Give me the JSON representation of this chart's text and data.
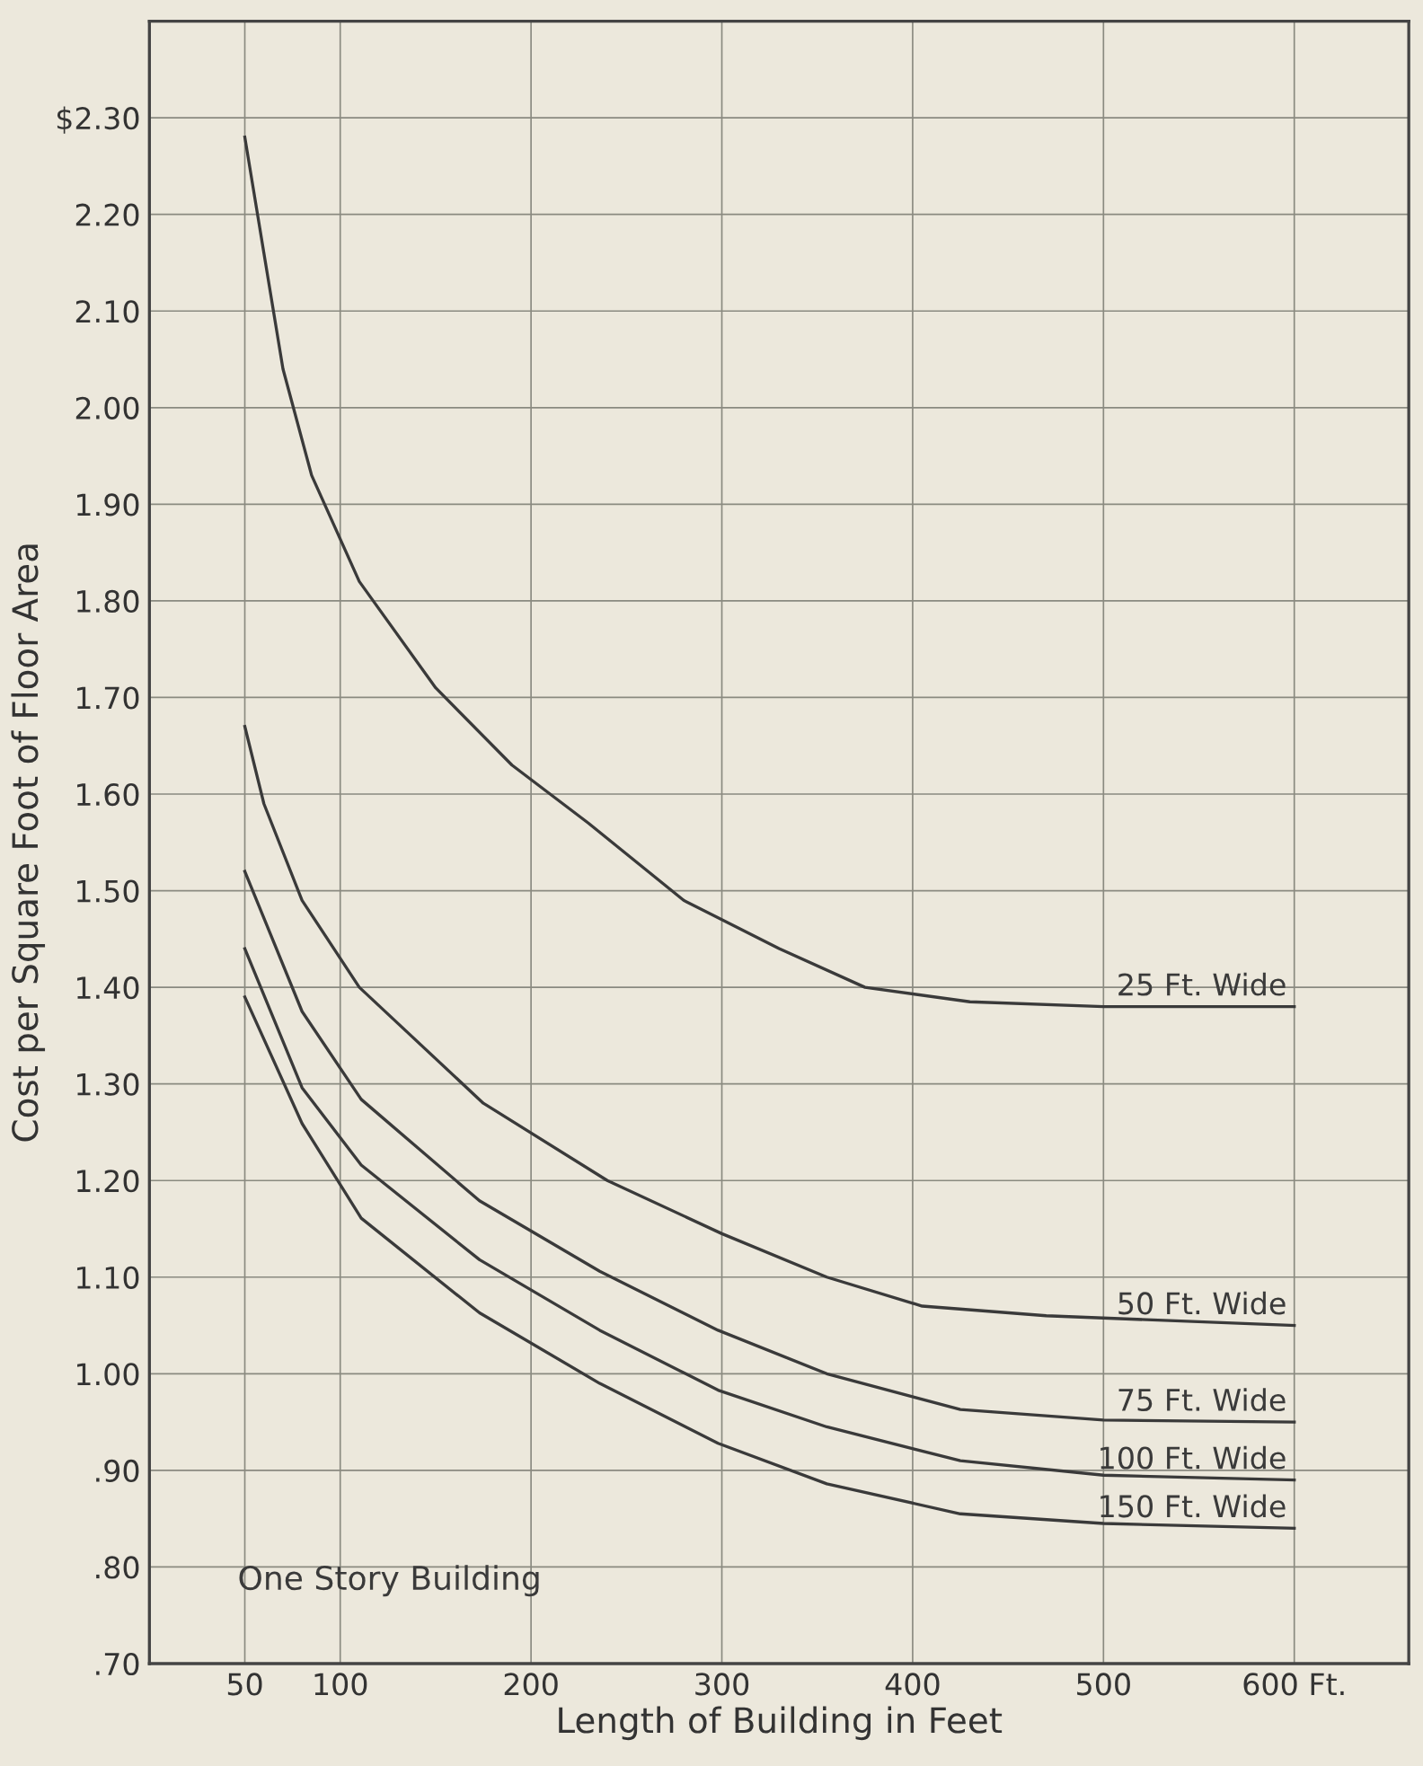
{
  "chart_data": {
    "type": "line",
    "xlabel": "Length of Building in Feet",
    "ylabel": "Cost per Square Foot of Floor Area",
    "annotations": [
      "One Story Building"
    ],
    "xlim": [
      0,
      660
    ],
    "ylim": [
      0.7,
      2.4
    ],
    "xticks": [
      50,
      100,
      200,
      300,
      400,
      500,
      {
        "value": 600,
        "label": "600 Ft."
      }
    ],
    "yticks": [
      {
        "value": 0.7,
        "label": ".70"
      },
      {
        "value": 0.8,
        "label": ".80"
      },
      {
        "value": 0.9,
        "label": ".90"
      },
      {
        "value": 1.0,
        "label": "1.00"
      },
      {
        "value": 1.1,
        "label": "1.10"
      },
      {
        "value": 1.2,
        "label": "1.20"
      },
      {
        "value": 1.3,
        "label": "1.30"
      },
      {
        "value": 1.4,
        "label": "1.40"
      },
      {
        "value": 1.5,
        "label": "1.50"
      },
      {
        "value": 1.6,
        "label": "1.60"
      },
      {
        "value": 1.7,
        "label": "1.70"
      },
      {
        "value": 1.8,
        "label": "1.80"
      },
      {
        "value": 1.9,
        "label": "1.90"
      },
      {
        "value": 2.0,
        "label": "2.00"
      },
      {
        "value": 2.1,
        "label": "2.10"
      },
      {
        "value": 2.2,
        "label": "2.20"
      },
      {
        "value": 2.3,
        "label": "$2.30"
      }
    ],
    "grid": true,
    "marker": "none",
    "line_style": "solid",
    "series": [
      {
        "name": "25 Ft. Wide",
        "color": "#3a3a3a",
        "x": [
          50,
          60,
          70,
          85,
          110,
          150,
          190,
          230,
          280,
          330,
          375,
          430,
          500,
          600
        ],
        "values": [
          2.28,
          2.16,
          2.04,
          1.93,
          1.82,
          1.71,
          1.63,
          1.57,
          1.49,
          1.44,
          1.4,
          1.385,
          1.38,
          1.38
        ]
      },
      {
        "name": "50 Ft. Wide",
        "color": "#3a3a3a",
        "x": [
          50,
          60,
          80,
          110,
          175,
          240,
          300,
          355,
          405,
          470,
          600
        ],
        "values": [
          1.67,
          1.59,
          1.49,
          1.4,
          1.28,
          1.2,
          1.145,
          1.1,
          1.07,
          1.06,
          1.05
        ]
      },
      {
        "name": "75 Ft. Wide",
        "color": "#3a3a3a",
        "x": [
          50,
          80,
          111,
          173,
          236,
          298,
          355,
          425,
          500,
          600
        ],
        "values": [
          1.52,
          1.375,
          1.284,
          1.179,
          1.106,
          1.045,
          1.0,
          0.963,
          0.952,
          0.95
        ]
      },
      {
        "name": "100 Ft. Wide",
        "color": "#3a3a3a",
        "x": [
          50,
          80,
          111,
          173,
          236,
          298,
          355,
          425,
          500,
          600
        ],
        "values": [
          1.44,
          1.296,
          1.216,
          1.118,
          1.045,
          0.983,
          0.945,
          0.91,
          0.895,
          0.89
        ]
      },
      {
        "name": "150 Ft. Wide",
        "color": "#3a3a3a",
        "x": [
          50,
          80,
          111,
          173,
          236,
          298,
          355,
          425,
          500,
          600
        ],
        "values": [
          1.39,
          1.259,
          1.161,
          1.063,
          0.99,
          0.928,
          0.886,
          0.855,
          0.845,
          0.84
        ]
      }
    ]
  }
}
